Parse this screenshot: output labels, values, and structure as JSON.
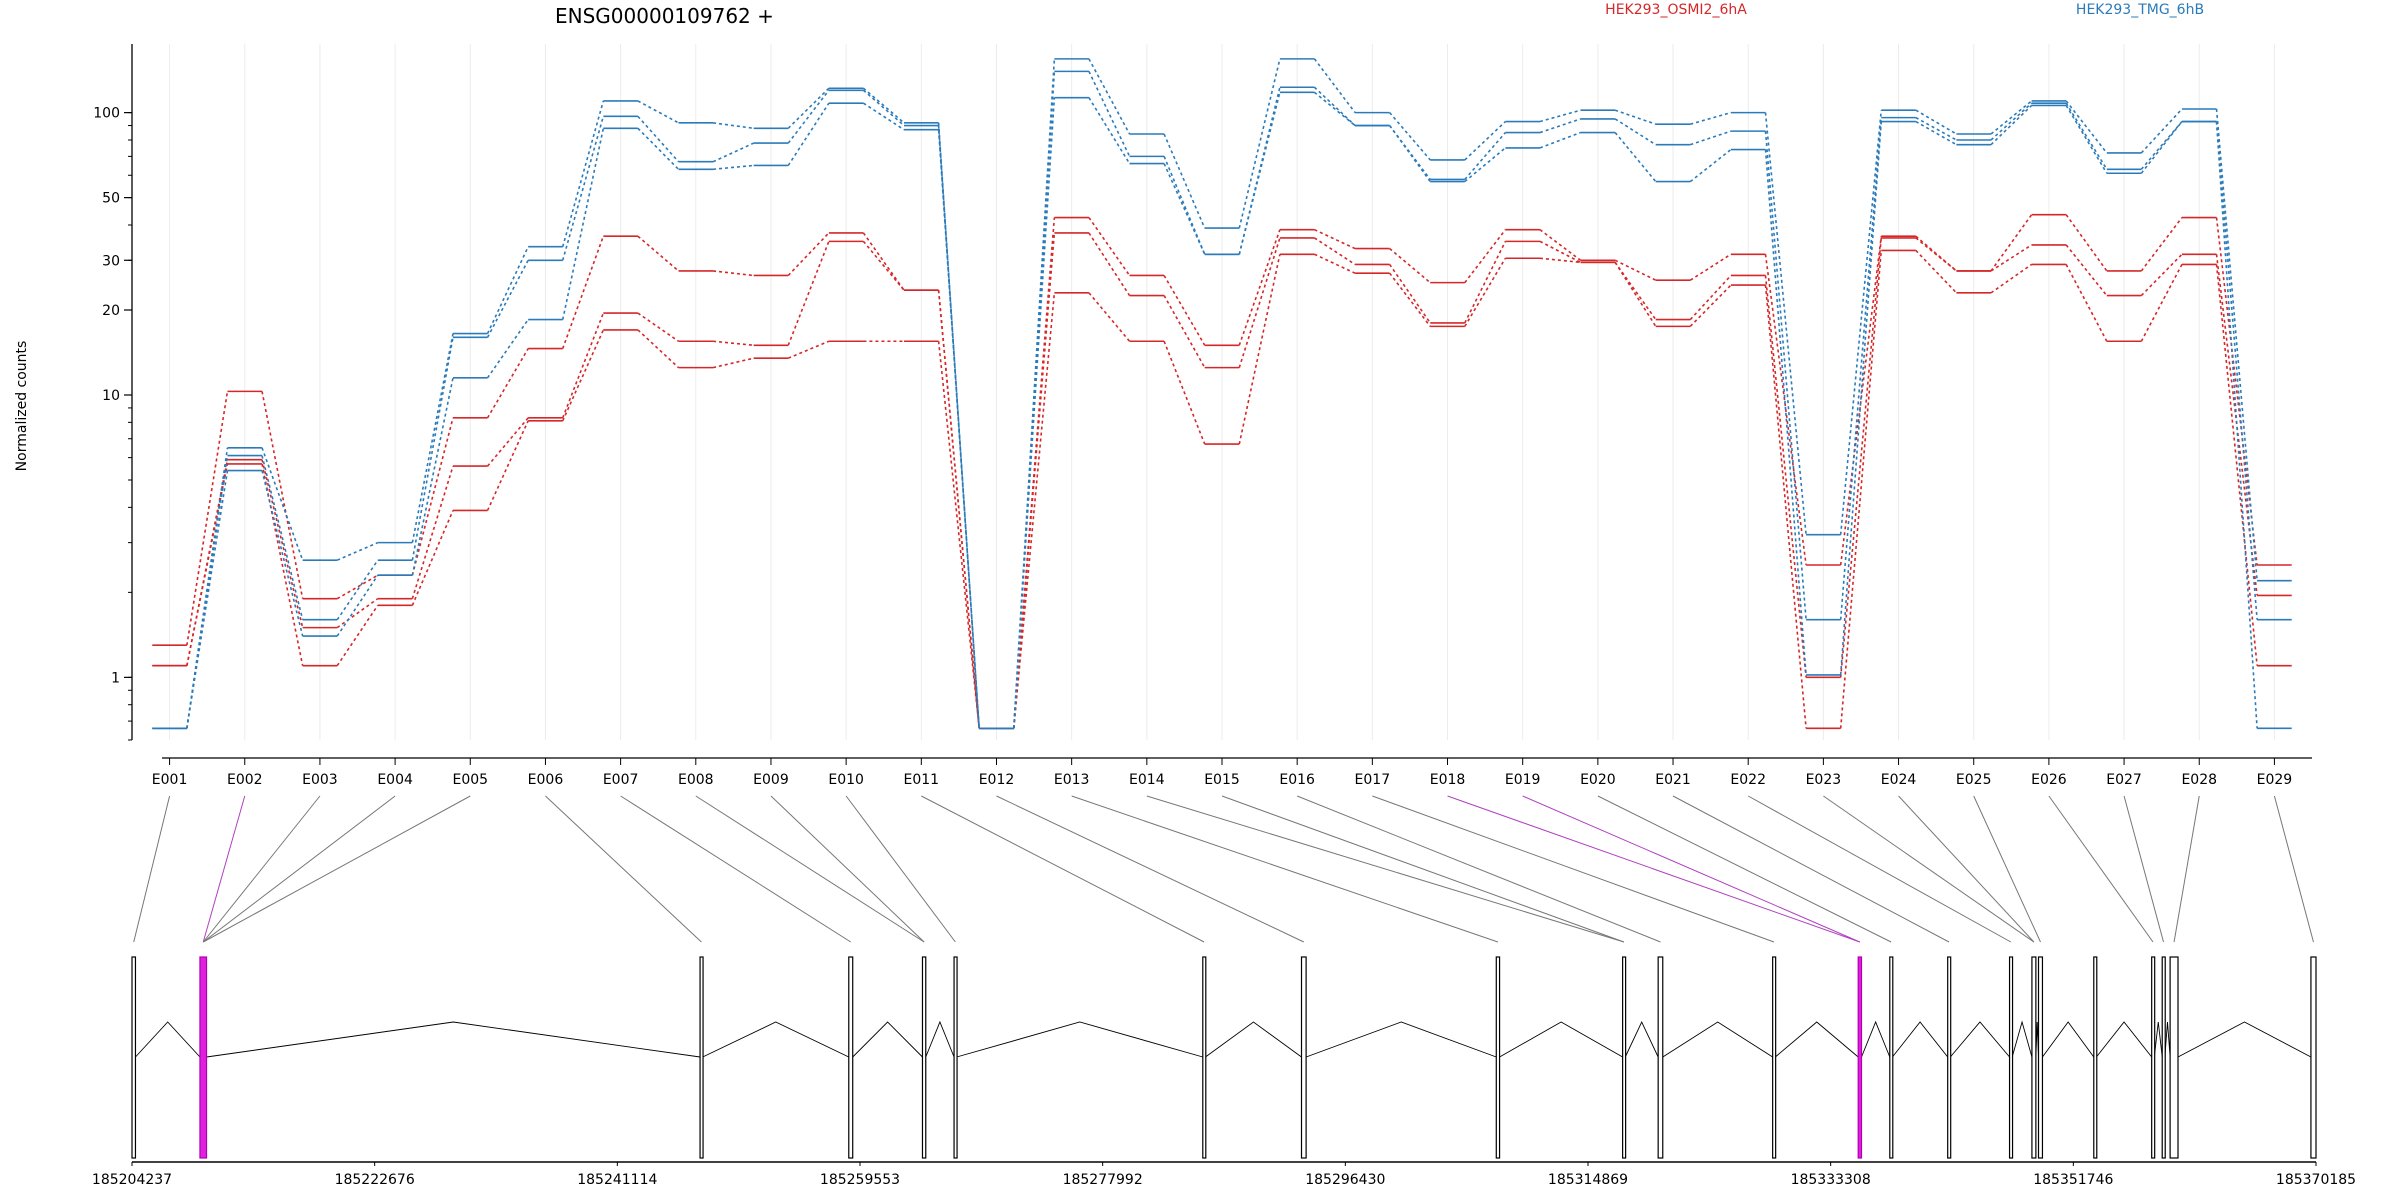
{
  "chart_data": {
    "type": "line",
    "title": "ENSG00000109762 +",
    "ylabel": "Normalized counts",
    "xlabel": "",
    "yscale": "log",
    "ylim": [
      0.6,
      175
    ],
    "grid": true,
    "legend_placement": "top",
    "y_ticks": [
      1,
      10,
      20,
      30,
      50,
      100
    ],
    "categories": [
      "E001",
      "E002",
      "E003",
      "E004",
      "E005",
      "E006",
      "E007",
      "E008",
      "E009",
      "E010",
      "E011",
      "E012",
      "E013",
      "E014",
      "E015",
      "E016",
      "E017",
      "E018",
      "E019",
      "E020",
      "E021",
      "E022",
      "E023",
      "E024",
      "E025",
      "E026",
      "E027",
      "E028",
      "E029"
    ],
    "legend": [
      {
        "label": "HEK293_OSMI2_6hA",
        "color": "#d62728"
      },
      {
        "label": "HEK293_TMG_6hB",
        "color": "#2b7bba"
      }
    ],
    "series": [
      {
        "group": "HEK293_OSMI2_6hA",
        "color": "#d62728",
        "values": [
          1.3,
          10.3,
          1.9,
          2.3,
          8.3,
          14.6,
          36.5,
          27.5,
          26.5,
          37.5,
          23.5,
          0.66,
          42.5,
          26.5,
          15,
          38.5,
          33,
          25,
          38.5,
          30,
          25.5,
          31.5,
          2.5,
          36.5,
          27.5,
          43.5,
          27.5,
          42.5,
          2.5
        ]
      },
      {
        "group": "HEK293_OSMI2_6hA",
        "color": "#d62728",
        "values": [
          1.1,
          5.9,
          1.5,
          1.9,
          5.6,
          8.3,
          19.5,
          15.5,
          15,
          35,
          23.5,
          0.66,
          37.5,
          22.5,
          12.5,
          36,
          29,
          18,
          35,
          29.5,
          18.5,
          26.5,
          1.0,
          36,
          27.5,
          34,
          22.5,
          31.5,
          1.95
        ]
      },
      {
        "group": "HEK293_OSMI2_6hA",
        "color": "#d62728",
        "values": [
          1.1,
          5.7,
          1.1,
          1.8,
          3.9,
          8.1,
          17,
          12.5,
          13.5,
          15.5,
          15.5,
          0.66,
          23,
          15.5,
          6.7,
          31.5,
          27,
          17.5,
          30.5,
          29.5,
          17.5,
          24.5,
          0.66,
          32.5,
          23,
          29,
          15.5,
          29,
          1.1
        ]
      },
      {
        "group": "HEK293_TMG_6hB",
        "color": "#2b7bba",
        "values": [
          0.66,
          6.5,
          2.6,
          3,
          16.5,
          33.5,
          110,
          92,
          88,
          122,
          92,
          0.66,
          155,
          84,
          39,
          155,
          100,
          68,
          93,
          102,
          91,
          100,
          3.2,
          102,
          84,
          110,
          72,
          103,
          2.2
        ]
      },
      {
        "group": "HEK293_TMG_6hB",
        "color": "#2b7bba",
        "values": [
          0.66,
          6.1,
          1.6,
          2.6,
          16,
          30,
          97,
          67,
          78,
          120,
          90,
          0.66,
          140,
          70,
          31.5,
          123,
          90,
          58,
          85,
          95,
          77,
          86,
          1.6,
          96,
          80,
          108,
          63,
          93,
          1.6
        ]
      },
      {
        "group": "HEK293_TMG_6hB",
        "color": "#2b7bba",
        "values": [
          0.66,
          5.4,
          1.4,
          2.3,
          11.5,
          18.5,
          88,
          63,
          65,
          108,
          87,
          0.66,
          113,
          66,
          31.5,
          118,
          90,
          57,
          75,
          85,
          57,
          74,
          1.02,
          93,
          77,
          106,
          61,
          93,
          0.66
        ]
      }
    ],
    "genomic_ticks": [
      "185204237",
      "185222676",
      "185241114",
      "185259553",
      "185277992",
      "185296430",
      "185314869",
      "185333308",
      "185351746",
      "185370185"
    ],
    "genomic_range": [
      185204237,
      185370185
    ],
    "exons": [
      {
        "start": 185204237,
        "end": 185204500,
        "highlight": false
      },
      {
        "start": 185209400,
        "end": 185209900,
        "highlight": true
      },
      {
        "start": 185247400,
        "end": 185247600,
        "highlight": false
      },
      {
        "start": 185258700,
        "end": 185259000,
        "highlight": false
      },
      {
        "start": 185264300,
        "end": 185264550,
        "highlight": false
      },
      {
        "start": 185266700,
        "end": 185266900,
        "highlight": false
      },
      {
        "start": 185285600,
        "end": 185285800,
        "highlight": false
      },
      {
        "start": 185293100,
        "end": 185293450,
        "highlight": false
      },
      {
        "start": 185307900,
        "end": 185308150,
        "highlight": false
      },
      {
        "start": 185317500,
        "end": 185317700,
        "highlight": false
      },
      {
        "start": 185320200,
        "end": 185320550,
        "highlight": false
      },
      {
        "start": 185328900,
        "end": 185329100,
        "highlight": false
      },
      {
        "start": 185335400,
        "end": 185335650,
        "highlight": true
      },
      {
        "start": 185337800,
        "end": 185338000,
        "highlight": false
      },
      {
        "start": 185342200,
        "end": 185342400,
        "highlight": false
      },
      {
        "start": 185346900,
        "end": 185347100,
        "highlight": false
      },
      {
        "start": 185348600,
        "end": 185348900,
        "highlight": false
      },
      {
        "start": 185349100,
        "end": 185349400,
        "highlight": false
      },
      {
        "start": 185353300,
        "end": 185353500,
        "highlight": false
      },
      {
        "start": 185357700,
        "end": 185357900,
        "highlight": false
      },
      {
        "start": 185358500,
        "end": 185358700,
        "highlight": false
      },
      {
        "start": 185359100,
        "end": 185359700,
        "highlight": false
      },
      {
        "start": 185369800,
        "end": 185370185,
        "highlight": false
      }
    ],
    "exon_mapping": [
      {
        "bin": "E001",
        "exon": 0,
        "highlight": false
      },
      {
        "bin": "E002",
        "exon": 1,
        "highlight": true
      },
      {
        "bin": "E003",
        "exon": 1,
        "highlight": false
      },
      {
        "bin": "E004",
        "exon": 1,
        "highlight": false
      },
      {
        "bin": "E005",
        "exon": 1,
        "highlight": false
      },
      {
        "bin": "E006",
        "exon": 2,
        "highlight": false
      },
      {
        "bin": "E007",
        "exon": 3,
        "highlight": false
      },
      {
        "bin": "E008",
        "exon": 4,
        "highlight": false
      },
      {
        "bin": "E009",
        "exon": 4,
        "highlight": false
      },
      {
        "bin": "E010",
        "exon": 5,
        "highlight": false
      },
      {
        "bin": "E011",
        "exon": 6,
        "highlight": false
      },
      {
        "bin": "E012",
        "exon": 7,
        "highlight": false
      },
      {
        "bin": "E013",
        "exon": 8,
        "highlight": false
      },
      {
        "bin": "E014",
        "exon": 9,
        "highlight": false
      },
      {
        "bin": "E015",
        "exon": 9,
        "highlight": false
      },
      {
        "bin": "E016",
        "exon": 10,
        "highlight": false
      },
      {
        "bin": "E017",
        "exon": 11,
        "highlight": false
      },
      {
        "bin": "E018",
        "exon": 12,
        "highlight": true
      },
      {
        "bin": "E019",
        "exon": 12,
        "highlight": true
      },
      {
        "bin": "E020",
        "exon": 13,
        "highlight": false
      },
      {
        "bin": "E021",
        "exon": 14,
        "highlight": false
      },
      {
        "bin": "E022",
        "exon": 15,
        "highlight": false
      },
      {
        "bin": "E023",
        "exon": 16,
        "highlight": false
      },
      {
        "bin": "E024",
        "exon": 16,
        "highlight": false
      },
      {
        "bin": "E025",
        "exon": 17,
        "highlight": false
      },
      {
        "bin": "E026",
        "exon": 19,
        "highlight": false
      },
      {
        "bin": "E027",
        "exon": 20,
        "highlight": false
      },
      {
        "bin": "E028",
        "exon": 21,
        "highlight": false
      },
      {
        "bin": "E029",
        "exon": 22,
        "highlight": false
      }
    ]
  }
}
